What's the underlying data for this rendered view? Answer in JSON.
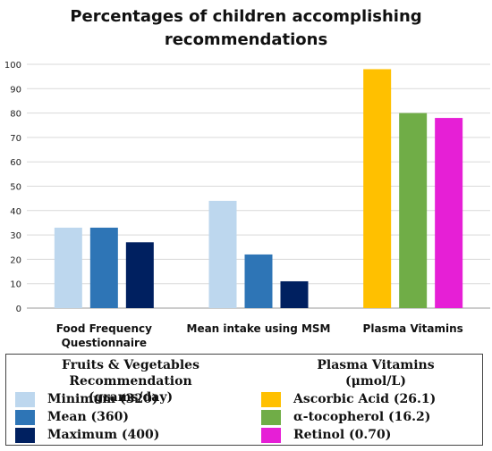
{
  "chart_data": {
    "type": "bar",
    "title": "Percentages of children accomplishing recommendations",
    "title_lines": [
      "Percentages of children accomplishing",
      "recommendations"
    ],
    "categories": [
      "Food Frequency Questionnaire",
      "Mean intake using MSM",
      "Plasma Vitamins"
    ],
    "category_lines": [
      [
        "Food Frequency",
        "Questionnaire"
      ],
      [
        "Mean intake using MSM"
      ],
      [
        "Plasma Vitamins"
      ]
    ],
    "ylim": [
      0,
      100
    ],
    "yticks": [
      0,
      10,
      20,
      30,
      40,
      50,
      60,
      70,
      80,
      90,
      100
    ],
    "grid": true,
    "legend_placement": "bottom",
    "groups": [
      {
        "category": "Food Frequency Questionnaire",
        "values": [
          33,
          33,
          27
        ],
        "colors": [
          "#bdd7ee",
          "#2e75b6",
          "#002060"
        ]
      },
      {
        "category": "Mean intake using MSM",
        "values": [
          44,
          22,
          11
        ],
        "colors": [
          "#bdd7ee",
          "#2e75b6",
          "#002060"
        ]
      },
      {
        "category": "Plasma Vitamins",
        "values": [
          98,
          80,
          78
        ],
        "colors": [
          "#ffc000",
          "#70ad47",
          "#e61fd6"
        ]
      }
    ]
  },
  "legend": {
    "left": {
      "heading": "Fruits & Vegetables Recommendation",
      "subheading": "(grams/day)",
      "items": [
        {
          "label": "Minimum (320)",
          "color": "#bdd7ee"
        },
        {
          "label": "Mean (360)",
          "color": "#2e75b6"
        },
        {
          "label": "Maximum (400)",
          "color": "#002060"
        }
      ]
    },
    "right": {
      "heading": "Plasma Vitamins",
      "subheading": "(μmol/L)",
      "items": [
        {
          "label": "Ascorbic Acid (26.1)",
          "color": "#ffc000"
        },
        {
          "label": "α-tocopherol (16.2)",
          "color": "#70ad47"
        },
        {
          "label": "Retinol (0.70)",
          "color": "#e61fd6"
        }
      ]
    }
  }
}
